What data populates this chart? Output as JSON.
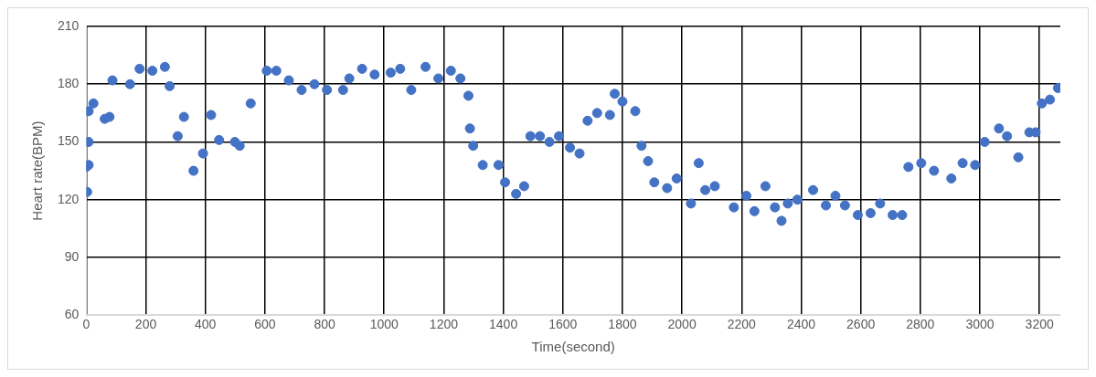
{
  "chart_data": {
    "type": "scatter",
    "xlabel": "Time(second)",
    "ylabel": "Heart rate(BPM)",
    "xlim": [
      0,
      3270
    ],
    "ylim": [
      60,
      210
    ],
    "xticks": [
      0,
      200,
      400,
      600,
      800,
      1000,
      1200,
      1400,
      1600,
      1800,
      2000,
      2200,
      2400,
      2600,
      2800,
      3000,
      3200
    ],
    "yticks": [
      60,
      90,
      120,
      150,
      180,
      210
    ],
    "grid": true,
    "legend": false,
    "marker": "circle",
    "series": [
      {
        "color": "#4472c4",
        "x": [
          0,
          3,
          8,
          8,
          8,
          24,
          62,
          78,
          88,
          147,
          179,
          222,
          264,
          280,
          307,
          328,
          360,
          392,
          419,
          446,
          499,
          515,
          552,
          606,
          638,
          680,
          723,
          766,
          808,
          862,
          883,
          926,
          968,
          1022,
          1054,
          1091,
          1139,
          1182,
          1224,
          1256,
          1283,
          1288,
          1299,
          1331,
          1384,
          1406,
          1443,
          1470,
          1491,
          1523,
          1555,
          1587,
          1624,
          1656,
          1683,
          1715,
          1758,
          1774,
          1800,
          1843,
          1864,
          1886,
          1907,
          1950,
          1982,
          2030,
          2056,
          2078,
          2110,
          2174,
          2216,
          2243,
          2280,
          2312,
          2334,
          2355,
          2387,
          2440,
          2483,
          2515,
          2547,
          2590,
          2633,
          2665,
          2707,
          2739,
          2760,
          2803,
          2846,
          2904,
          2942,
          2984,
          3016,
          3064,
          3091,
          3129,
          3166,
          3187,
          3208,
          3235,
          3262
        ],
        "values": [
          137,
          124,
          138,
          150,
          166,
          170,
          162,
          163,
          182,
          180,
          188,
          187,
          189,
          179,
          153,
          163,
          135,
          144,
          164,
          151,
          150,
          148,
          170,
          187,
          187,
          182,
          177,
          180,
          177,
          177,
          183,
          188,
          185,
          186,
          188,
          177,
          189,
          183,
          187,
          183,
          174,
          157,
          148,
          138,
          138,
          129,
          123,
          127,
          153,
          153,
          150,
          153,
          147,
          144,
          161,
          165,
          164,
          175,
          171,
          166,
          148,
          140,
          129,
          126,
          131,
          118,
          139,
          125,
          127,
          116,
          122,
          114,
          127,
          116,
          109,
          118,
          120,
          125,
          117,
          122,
          117,
          112,
          113,
          118,
          112,
          112,
          137,
          139,
          135,
          131,
          139,
          138,
          150,
          157,
          153,
          142,
          155,
          155,
          170,
          172,
          178
        ]
      }
    ]
  }
}
